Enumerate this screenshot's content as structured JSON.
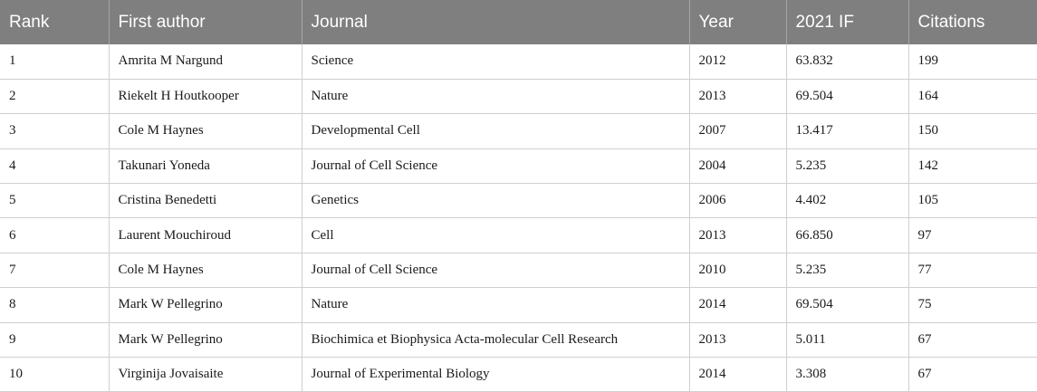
{
  "table": {
    "headers": [
      "Rank",
      "First author",
      "Journal",
      "Year",
      "2021 IF",
      "Citations"
    ],
    "rows": [
      [
        "1",
        "Amrita M Nargund",
        "Science",
        "2012",
        "63.832",
        "199"
      ],
      [
        "2",
        "Riekelt H Houtkooper",
        "Nature",
        "2013",
        "69.504",
        "164"
      ],
      [
        "3",
        "Cole M Haynes",
        "Developmental Cell",
        "2007",
        "13.417",
        "150"
      ],
      [
        "4",
        "Takunari Yoneda",
        "Journal of Cell Science",
        "2004",
        "5.235",
        "142"
      ],
      [
        "5",
        "Cristina Benedetti",
        "Genetics",
        "2006",
        "4.402",
        "105"
      ],
      [
        "6",
        "Laurent Mouchiroud",
        "Cell",
        "2013",
        "66.850",
        "97"
      ],
      [
        "7",
        "Cole M Haynes",
        "Journal of Cell Science",
        "2010",
        "5.235",
        "77"
      ],
      [
        "8",
        "Mark W Pellegrino",
        "Nature",
        "2014",
        "69.504",
        "75"
      ],
      [
        "9",
        "Mark W Pellegrino",
        "Biochimica et Biophysica Acta-molecular Cell Research",
        "2013",
        "5.011",
        "67"
      ],
      [
        "10",
        "Virginija Jovaisaite",
        "Journal of Experimental Biology",
        "2014",
        "3.308",
        "67"
      ]
    ]
  },
  "colors": {
    "header_background": "#7f7f7f",
    "header_text": "#ffffff",
    "grid_line": "#cfcfcf"
  }
}
